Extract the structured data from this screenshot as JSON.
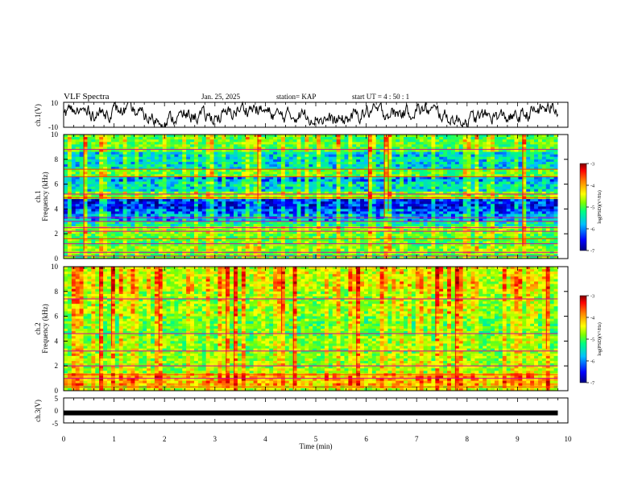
{
  "header": {
    "title": "VLF Spectra",
    "date": "Jan. 25, 2025",
    "station": "station= KAP",
    "start": "start  UT =   4 : 50 : 1"
  },
  "colors": {
    "colormap": [
      "#00007f",
      "#0000ff",
      "#00bfff",
      "#00ff7f",
      "#7fff00",
      "#ffff00",
      "#ff7f00",
      "#ff0000",
      "#7f0000"
    ],
    "line": "#000000"
  },
  "chart_data": [
    {
      "type": "line",
      "name": "ch1-waveform",
      "ylabel": "ch.1(V)",
      "ylim": [
        -10,
        10
      ],
      "yticks": [
        "10",
        "-10"
      ],
      "xlim": [
        0,
        10
      ],
      "description_series": "noisy VLF waveform oscillating roughly between -9 and 9 V across the 9.8 min record"
    },
    {
      "type": "heatmap",
      "name": "ch1-spectrogram",
      "ylabel": "ch.1\nFrequency (kHz)",
      "ylabel_lines": [
        "ch.1",
        "Frequency (kHz)"
      ],
      "ylim": [
        0,
        10
      ],
      "yticks": [
        0,
        2,
        4,
        6,
        8,
        10
      ],
      "xlim": [
        0,
        9.8
      ],
      "colorbar": {
        "label": "log(PSD)(V²/Hz)",
        "range": [
          -7,
          -3
        ],
        "ticks": [
          "-3",
          "-4",
          "-5",
          "-6",
          "-7"
        ]
      },
      "bands": [
        {
          "lo": 0.0,
          "hi": 0.4,
          "level": 0.45
        },
        {
          "lo": 0.4,
          "hi": 1.0,
          "level": 0.5
        },
        {
          "lo": 1.0,
          "hi": 2.0,
          "level": 0.45
        },
        {
          "lo": 2.0,
          "hi": 2.6,
          "level": 0.5
        },
        {
          "lo": 2.6,
          "hi": 3.0,
          "level": 0.35
        },
        {
          "lo": 3.0,
          "hi": 3.6,
          "level": 0.25
        },
        {
          "lo": 3.6,
          "hi": 4.0,
          "level": 0.18
        },
        {
          "lo": 4.0,
          "hi": 4.9,
          "level": 0.12
        },
        {
          "lo": 4.9,
          "hi": 5.4,
          "level": 0.5
        },
        {
          "lo": 5.4,
          "hi": 6.2,
          "level": 0.3
        },
        {
          "lo": 6.2,
          "hi": 6.6,
          "level": 0.22
        },
        {
          "lo": 6.6,
          "hi": 7.2,
          "level": 0.45
        },
        {
          "lo": 7.2,
          "hi": 8.6,
          "level": 0.3
        },
        {
          "lo": 8.6,
          "hi": 10.0,
          "level": 0.45
        }
      ],
      "lines_khz": [
        0.2,
        0.5,
        1.2,
        1.6,
        2.2,
        2.5,
        3.0,
        3.3,
        4.9,
        5.2,
        6.6,
        7.2,
        8.8
      ],
      "sferic_density": 0.35
    },
    {
      "type": "heatmap",
      "name": "ch2-spectrogram",
      "ylabel": "ch.2\nFrequency (kHz)",
      "ylabel_lines": [
        "ch.2",
        "Frequency (kHz)"
      ],
      "ylim": [
        0,
        10
      ],
      "yticks": [
        0,
        2,
        4,
        6,
        8,
        10
      ],
      "xlim": [
        0,
        9.8
      ],
      "colorbar": {
        "label": "log(PSD)(V²/Hz)",
        "range": [
          -7,
          -3
        ],
        "ticks": [
          "-3",
          "-4",
          "-5",
          "-6",
          "-7"
        ]
      },
      "bands": [
        {
          "lo": 0.0,
          "hi": 0.5,
          "level": 0.55
        },
        {
          "lo": 0.5,
          "hi": 1.5,
          "level": 0.65
        },
        {
          "lo": 1.5,
          "hi": 3.0,
          "level": 0.5
        },
        {
          "lo": 3.0,
          "hi": 4.5,
          "level": 0.48
        },
        {
          "lo": 4.5,
          "hi": 6.0,
          "level": 0.45
        },
        {
          "lo": 6.0,
          "hi": 8.0,
          "level": 0.5
        },
        {
          "lo": 8.0,
          "hi": 10.0,
          "level": 0.55
        }
      ],
      "lines_khz": [
        0.3,
        1.0,
        1.3,
        2.0,
        3.2,
        4.6,
        7.4
      ],
      "sferic_density": 0.45
    },
    {
      "type": "line",
      "name": "ch3-waveform",
      "ylabel": "ch.3(V)",
      "ylim": [
        -5,
        5
      ],
      "yticks": [
        "5",
        "0",
        "-5"
      ],
      "xlim": [
        0,
        10
      ],
      "constant_value": -1
    }
  ],
  "xaxis": {
    "label": "Time (min)",
    "ticks": [
      "0",
      "1",
      "2",
      "3",
      "4",
      "5",
      "6",
      "7",
      "8",
      "9",
      "10"
    ],
    "range": [
      0,
      10
    ]
  }
}
